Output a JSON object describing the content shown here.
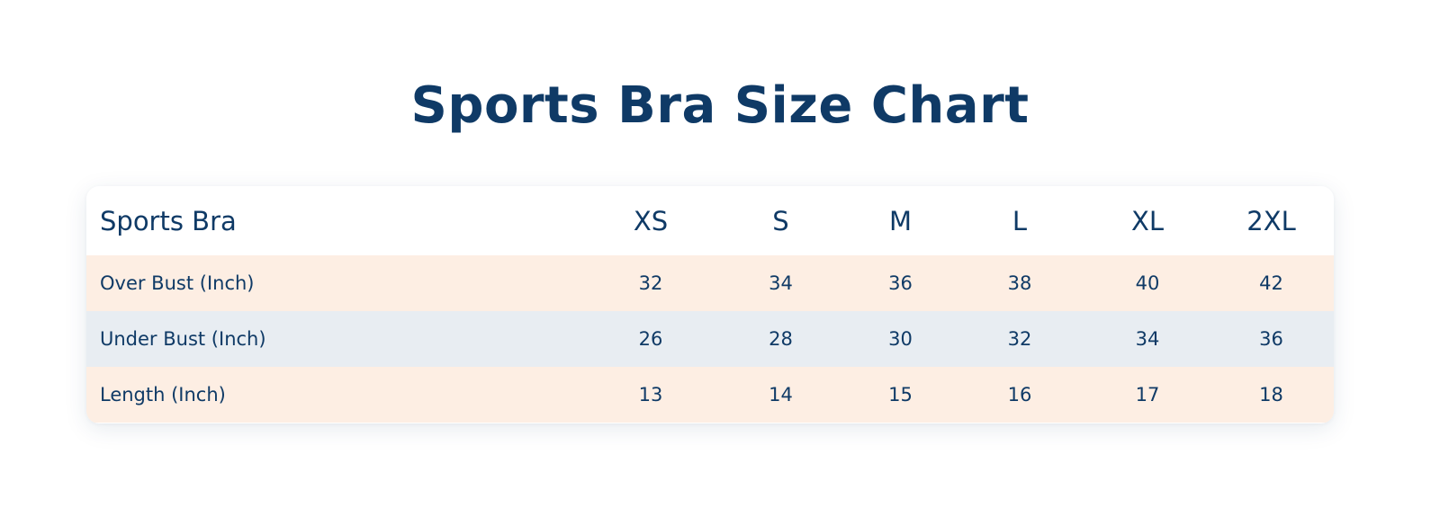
{
  "title": "Sports Bra Size Chart",
  "colors": {
    "text": "#0f3a66",
    "row_peach": "#fdeee3",
    "row_grey": "#e8edf2",
    "background": "#ffffff"
  },
  "table": {
    "header": {
      "label": "Sports Bra",
      "sizes": [
        "XS",
        "S",
        "M",
        "L",
        "XL",
        "2XL"
      ]
    },
    "rows": [
      {
        "label": "Over Bust (Inch)",
        "values": [
          "32",
          "34",
          "36",
          "38",
          "40",
          "42"
        ]
      },
      {
        "label": "Under Bust (Inch)",
        "values": [
          "26",
          "28",
          "30",
          "32",
          "34",
          "36"
        ]
      },
      {
        "label": "Length (Inch)",
        "values": [
          "13",
          "14",
          "15",
          "16",
          "17",
          "18"
        ]
      }
    ]
  }
}
